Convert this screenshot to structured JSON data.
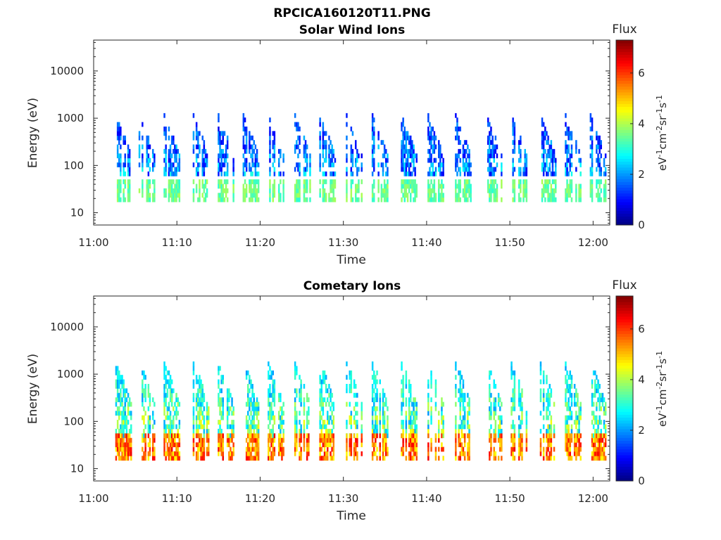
{
  "figure": {
    "filename": "RPCICA160120T11.PNG",
    "flux_label": "Flux",
    "flux_unit_parts": [
      {
        "t": "eV",
        "sup": false
      },
      {
        "t": "-1",
        "sup": true
      },
      {
        "t": "cm",
        "sup": false
      },
      {
        "t": "-2",
        "sup": true
      },
      {
        "t": "sr",
        "sup": false
      },
      {
        "t": "-1",
        "sup": true
      },
      {
        "t": "s",
        "sup": false
      },
      {
        "t": "-1",
        "sup": true
      }
    ]
  },
  "chart_data": [
    {
      "type": "heatmap",
      "title": "Solar Wind Ions",
      "xlabel": "Time",
      "ylabel": "Energy (eV)",
      "x_ticks": [
        "11:00",
        "11:10",
        "11:20",
        "11:30",
        "11:40",
        "11:50",
        "12:00"
      ],
      "x_range_min": [
        0,
        62
      ],
      "y_scale": "log",
      "y_ticks": [
        10,
        100,
        1000,
        10000
      ],
      "y_range": [
        5.5,
        45000
      ],
      "colorbar": {
        "label": "Flux",
        "ticks": [
          0,
          2,
          4,
          6
        ],
        "range": [
          0,
          7.3
        ],
        "colormap": "jet"
      },
      "bursts_time_min": [
        3.5,
        6.3,
        9.3,
        12.8,
        15.8,
        18.8,
        21.8,
        25.0,
        28.0,
        31.2,
        34.3,
        37.8,
        41.0,
        44.3,
        48.0,
        51.0,
        54.5,
        57.5,
        60.5
      ],
      "bands": {
        "low_eV": [
          17,
          45
        ],
        "high_eV": [
          60,
          1200
        ]
      },
      "low_band_flux": [
        3.0,
        4.0
      ],
      "high_band_flux": [
        0.8,
        3.0
      ]
    },
    {
      "type": "heatmap",
      "title": "Cometary Ions",
      "xlabel": "Time",
      "ylabel": "Energy (eV)",
      "x_ticks": [
        "11:00",
        "11:10",
        "11:20",
        "11:30",
        "11:40",
        "11:50",
        "12:00"
      ],
      "x_range_min": [
        0,
        62
      ],
      "y_scale": "log",
      "y_ticks": [
        10,
        100,
        1000,
        10000
      ],
      "y_range": [
        5.5,
        45000
      ],
      "colorbar": {
        "label": "Flux",
        "ticks": [
          0,
          2,
          4,
          6
        ],
        "range": [
          0,
          7.3
        ],
        "colormap": "jet"
      },
      "bursts_time_min": [
        3.5,
        6.3,
        9.3,
        12.8,
        15.8,
        18.8,
        21.8,
        25.0,
        28.0,
        31.2,
        34.3,
        37.8,
        41.0,
        44.3,
        48.0,
        51.0,
        54.5,
        57.5,
        60.5
      ],
      "bands": {
        "low_eV": [
          15,
          45
        ],
        "high_eV": [
          45,
          1800
        ]
      },
      "low_band_flux": [
        4.5,
        6.5
      ],
      "high_band_flux": [
        2.0,
        5.0
      ]
    }
  ]
}
